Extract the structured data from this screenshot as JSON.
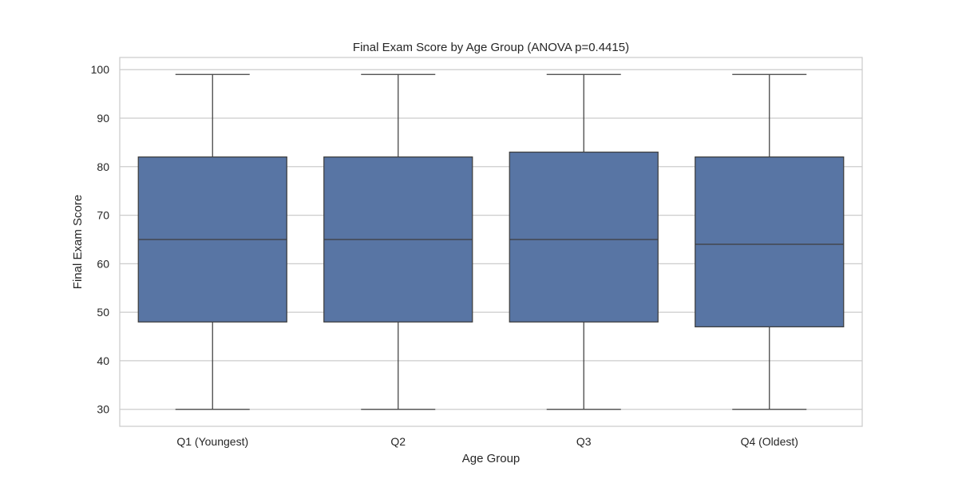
{
  "chart_data": {
    "type": "box",
    "title": "Final Exam Score by Age Group (ANOVA p=0.4415)",
    "xlabel": "Age Group",
    "ylabel": "Final Exam Score",
    "categories": [
      "Q1 (Youngest)",
      "Q2",
      "Q3",
      "Q4 (Oldest)"
    ],
    "boxes": [
      {
        "category": "Q1 (Youngest)",
        "whisker_low": 30,
        "q1": 48,
        "median": 65,
        "q3": 82,
        "whisker_high": 99
      },
      {
        "category": "Q2",
        "whisker_low": 30,
        "q1": 48,
        "median": 65,
        "q3": 82,
        "whisker_high": 99
      },
      {
        "category": "Q3",
        "whisker_low": 30,
        "q1": 48,
        "median": 65,
        "q3": 83,
        "whisker_high": 99
      },
      {
        "category": "Q4 (Oldest)",
        "whisker_low": 30,
        "q1": 47,
        "median": 64,
        "q3": 82,
        "whisker_high": 99
      }
    ],
    "yticks": [
      30,
      40,
      50,
      60,
      70,
      80,
      90,
      100
    ],
    "ylim": [
      26.5,
      102.5
    ],
    "grid": true,
    "legend": "none",
    "colors": {
      "box_fill": "#5875a4",
      "box_edge": "#3f3f3f",
      "grid": "#cccccc",
      "frame": "#cccccc",
      "text": "#262626"
    }
  }
}
